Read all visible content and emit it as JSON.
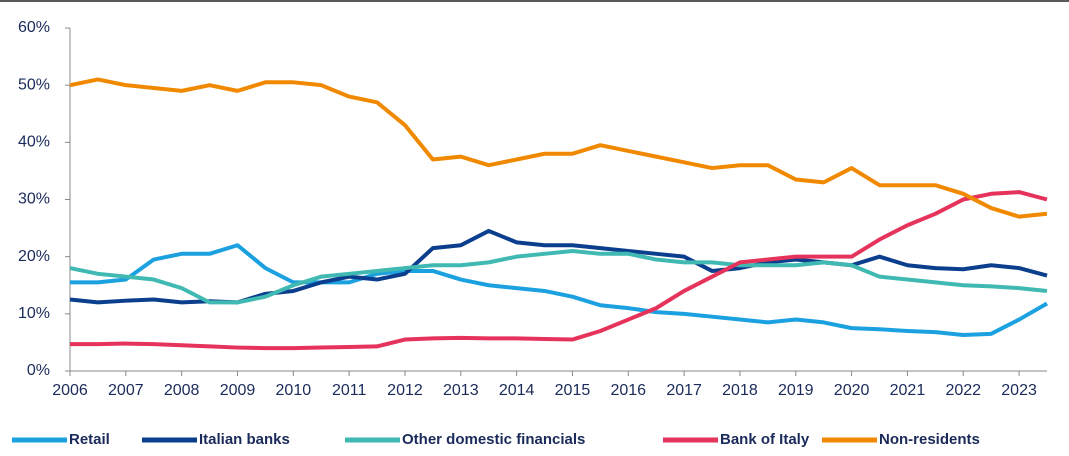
{
  "chart_data": {
    "type": "line",
    "x": [
      2006,
      2006.5,
      2007,
      2007.5,
      2008,
      2008.5,
      2009,
      2009.5,
      2010,
      2010.5,
      2011,
      2011.5,
      2012,
      2012.5,
      2013,
      2013.5,
      2014,
      2014.5,
      2015,
      2015.5,
      2016,
      2016.5,
      2017,
      2017.5,
      2018,
      2018.5,
      2019,
      2019.5,
      2020,
      2020.5,
      2021,
      2021.5,
      2022,
      2022.5,
      2023,
      2023.5
    ],
    "series": [
      {
        "name": "Retail",
        "color": "#1ba1df",
        "values": [
          15.5,
          15.5,
          16,
          19.5,
          20.5,
          20.5,
          22,
          18,
          15.5,
          15.5,
          15.5,
          17,
          17.5,
          17.5,
          16,
          15,
          14.5,
          14,
          13,
          11.5,
          11,
          10.3,
          10,
          9.5,
          9,
          8.5,
          9,
          8.5,
          7.5,
          7.3,
          7,
          6.8,
          6.3,
          6.5,
          9,
          11.8
        ]
      },
      {
        "name": "Italian banks",
        "color": "#0b3f8e",
        "values": [
          12.5,
          12,
          12.3,
          12.5,
          12,
          12.2,
          12,
          13.5,
          14,
          15.5,
          16.5,
          16,
          17,
          21.5,
          22,
          24.5,
          22.5,
          22,
          22,
          21.5,
          21,
          20.5,
          20,
          17.5,
          18,
          19,
          19.5,
          19,
          18.5,
          20,
          18.5,
          18,
          17.8,
          18.5,
          18,
          16.7
        ]
      },
      {
        "name": "Other domestic financials",
        "color": "#3fb9b1",
        "values": [
          18,
          17,
          16.5,
          16,
          14.5,
          12,
          12,
          13,
          15,
          16.5,
          17,
          17.5,
          18,
          18.5,
          18.5,
          19,
          20,
          20.5,
          21,
          20.5,
          20.5,
          19.5,
          19,
          19,
          18.5,
          18.5,
          18.5,
          19,
          18.5,
          16.5,
          16,
          15.5,
          15,
          14.8,
          14.5,
          14
        ]
      },
      {
        "name": "Bank of Italy",
        "color": "#e6335c",
        "values": [
          4.7,
          4.7,
          4.8,
          4.7,
          4.5,
          4.3,
          4.1,
          4,
          4,
          4.1,
          4.2,
          4.3,
          5.5,
          5.7,
          5.8,
          5.7,
          5.7,
          5.6,
          5.5,
          7,
          9,
          11,
          14,
          16.5,
          19,
          19.5,
          20,
          20,
          20,
          23,
          25.5,
          27.5,
          30,
          31,
          31.3,
          30
        ]
      },
      {
        "name": "Non-residents",
        "color": "#f08900",
        "values": [
          50,
          51,
          50,
          49.5,
          49,
          50,
          49,
          50.5,
          50.5,
          50,
          48,
          47,
          43,
          37,
          37.5,
          36,
          37,
          38,
          38,
          39.5,
          38.5,
          37.5,
          36.5,
          35.5,
          36,
          36,
          33.5,
          33,
          35.5,
          32.5,
          32.5,
          32.5,
          31,
          28.5,
          27,
          27.5
        ]
      }
    ],
    "xlim": [
      2006,
      2023.5
    ],
    "xticks": [
      2006,
      2007,
      2008,
      2009,
      2010,
      2011,
      2012,
      2013,
      2014,
      2015,
      2016,
      2017,
      2018,
      2019,
      2020,
      2021,
      2022,
      2023
    ],
    "ylim": [
      0,
      60
    ],
    "yticks": [
      {
        "value": 0,
        "label": "0%"
      },
      {
        "value": 10,
        "label": "10%"
      },
      {
        "value": 20,
        "label": "20%"
      },
      {
        "value": 30,
        "label": "30%"
      },
      {
        "value": 40,
        "label": "40%"
      },
      {
        "value": 50,
        "label": "50%"
      },
      {
        "value": 60,
        "label": "60%"
      }
    ],
    "legend": "bottom"
  }
}
